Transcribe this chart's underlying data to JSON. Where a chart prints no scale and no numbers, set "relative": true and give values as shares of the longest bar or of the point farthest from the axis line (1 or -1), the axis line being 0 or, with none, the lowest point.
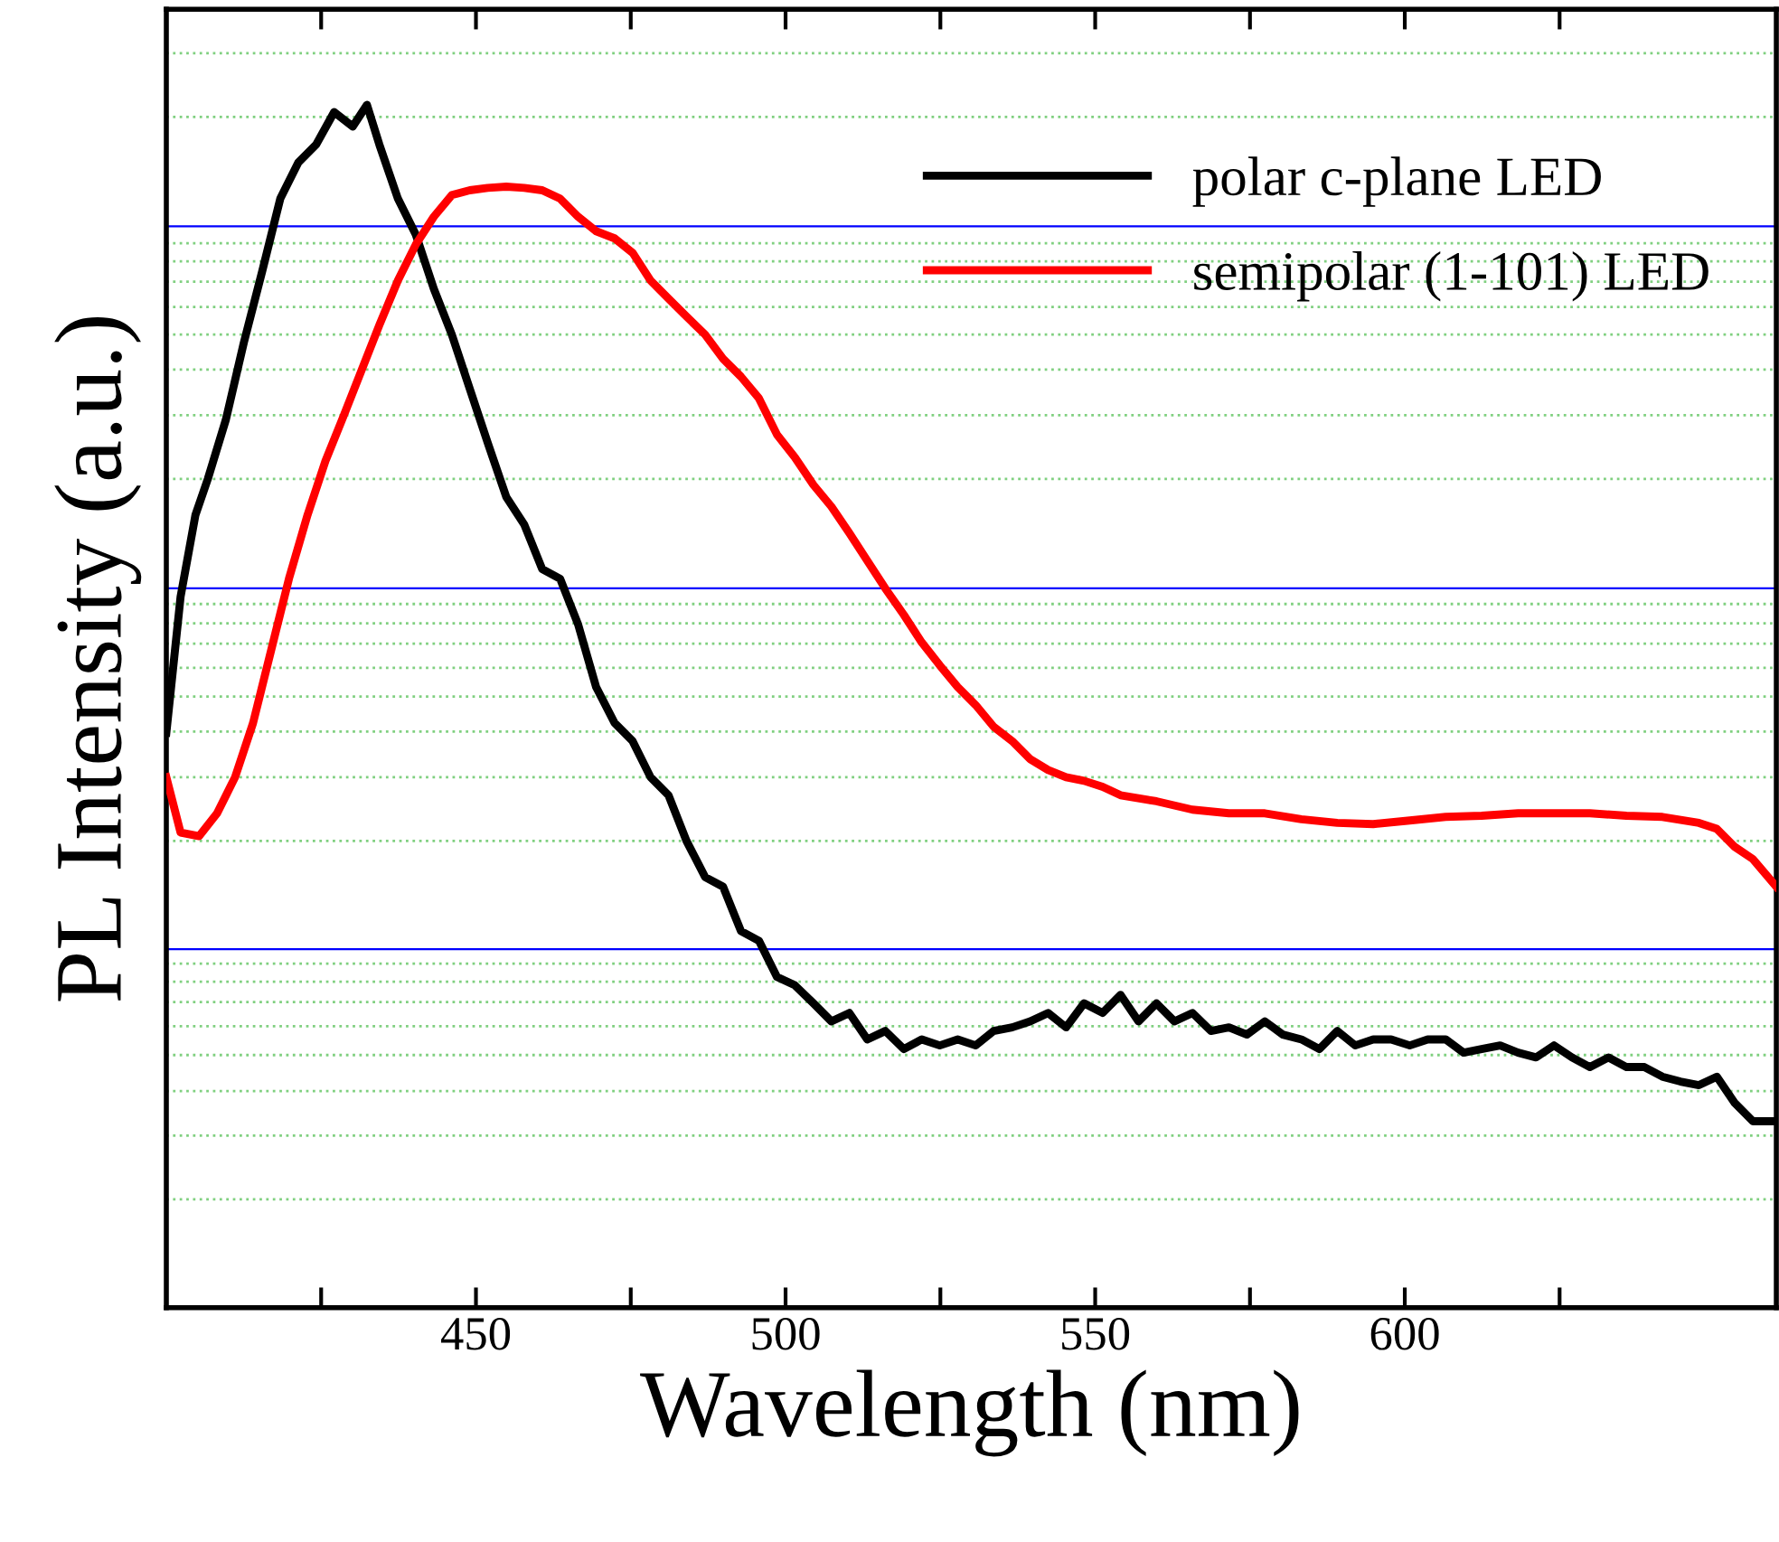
{
  "chart_data": {
    "type": "line",
    "relative": true,
    "xlabel": "Wavelength (nm)",
    "ylabel": "PL Intensity (a.u.)",
    "xlim": [
      400,
      660
    ],
    "xticks": [
      {
        "value": 425,
        "label": null
      },
      450,
      {
        "value": 475,
        "label": null
      },
      500,
      {
        "value": 525,
        "label": null
      },
      550,
      {
        "value": 575,
        "label": null
      },
      600,
      {
        "value": 625,
        "label": null
      }
    ],
    "tick_labels": "x",
    "legend": "top right",
    "grid": false,
    "line_style": "solid",
    "marker": "none",
    "series": [
      {
        "name": "polar c-plane LED",
        "color": "#000000",
        "x": [
          400.0,
          402.3,
          404.7,
          406.7,
          409.6,
          412.5,
          415.5,
          418.4,
          421.3,
          424.2,
          427.1,
          430.1,
          432.4,
          434.4,
          437.4,
          440.3,
          443.2,
          446.1,
          449.0,
          451.9,
          454.9,
          457.8,
          460.7,
          463.6,
          466.5,
          469.4,
          472.4,
          475.3,
          478.2,
          481.1,
          484.0,
          487.0,
          489.9,
          492.8,
          495.7,
          498.6,
          501.5,
          504.5,
          507.4,
          510.3,
          513.2,
          516.1,
          519.1,
          522.0,
          524.9,
          527.8,
          530.7,
          533.6,
          536.6,
          539.5,
          542.4,
          545.3,
          548.2,
          551.2,
          554.1,
          557.0,
          559.9,
          562.8,
          565.7,
          568.7,
          571.6,
          574.5,
          577.4,
          580.3,
          583.3,
          586.2,
          589.1,
          592.0,
          594.9,
          597.8,
          600.8,
          603.7,
          606.6,
          609.5,
          612.4,
          615.4,
          618.3,
          621.2,
          624.1,
          627.0,
          629.9,
          632.9,
          635.8,
          638.7,
          641.6,
          644.5,
          647.5,
          650.4,
          653.3,
          656.2,
          660.0
        ],
        "values": [
          0.478,
          0.591,
          0.659,
          0.689,
          0.738,
          0.802,
          0.862,
          0.922,
          0.952,
          0.967,
          0.994,
          0.982,
          1.0,
          0.967,
          0.922,
          0.892,
          0.847,
          0.809,
          0.764,
          0.719,
          0.674,
          0.651,
          0.614,
          0.606,
          0.568,
          0.516,
          0.486,
          0.471,
          0.441,
          0.426,
          0.388,
          0.358,
          0.35,
          0.313,
          0.305,
          0.275,
          0.268,
          0.253,
          0.238,
          0.245,
          0.223,
          0.23,
          0.215,
          0.223,
          0.218,
          0.223,
          0.218,
          0.23,
          0.233,
          0.238,
          0.245,
          0.233,
          0.253,
          0.245,
          0.26,
          0.238,
          0.253,
          0.238,
          0.245,
          0.23,
          0.233,
          0.227,
          0.238,
          0.227,
          0.223,
          0.215,
          0.23,
          0.218,
          0.223,
          0.223,
          0.218,
          0.223,
          0.223,
          0.212,
          0.215,
          0.218,
          0.212,
          0.208,
          0.218,
          0.208,
          0.2,
          0.208,
          0.2,
          0.2,
          0.192,
          0.188,
          0.185,
          0.192,
          0.17,
          0.155,
          0.155
        ]
      },
      {
        "name": "semipolar (1-101) LED",
        "color": "#ff0000",
        "x": [
          400.0,
          402.3,
          405.3,
          408.2,
          411.1,
          414.0,
          416.9,
          419.8,
          422.8,
          425.7,
          428.6,
          431.5,
          434.4,
          437.4,
          440.3,
          443.2,
          446.1,
          449.0,
          451.9,
          454.9,
          457.8,
          460.7,
          463.6,
          466.5,
          469.4,
          472.4,
          475.3,
          478.2,
          481.1,
          484.0,
          487.0,
          489.9,
          492.8,
          495.7,
          498.6,
          501.5,
          504.5,
          507.4,
          510.3,
          513.2,
          516.1,
          519.1,
          522.0,
          524.9,
          527.8,
          530.7,
          533.6,
          536.6,
          539.5,
          542.4,
          545.3,
          548.2,
          551.2,
          554.1,
          559.9,
          565.7,
          571.6,
          577.4,
          583.3,
          589.1,
          594.9,
          600.8,
          606.6,
          612.4,
          618.3,
          624.1,
          629.9,
          635.8,
          641.6,
          647.5,
          650.4,
          653.3,
          656.2,
          660.0
        ],
        "values": [
          0.441,
          0.395,
          0.392,
          0.411,
          0.441,
          0.486,
          0.546,
          0.606,
          0.659,
          0.704,
          0.741,
          0.779,
          0.817,
          0.854,
          0.884,
          0.907,
          0.925,
          0.929,
          0.931,
          0.932,
          0.931,
          0.929,
          0.922,
          0.907,
          0.895,
          0.889,
          0.877,
          0.854,
          0.839,
          0.824,
          0.809,
          0.789,
          0.774,
          0.756,
          0.726,
          0.707,
          0.684,
          0.666,
          0.644,
          0.621,
          0.598,
          0.576,
          0.553,
          0.534,
          0.516,
          0.501,
          0.483,
          0.471,
          0.456,
          0.447,
          0.441,
          0.438,
          0.433,
          0.426,
          0.421,
          0.414,
          0.411,
          0.411,
          0.406,
          0.403,
          0.402,
          0.405,
          0.408,
          0.409,
          0.411,
          0.411,
          0.411,
          0.409,
          0.408,
          0.403,
          0.398,
          0.383,
          0.373,
          0.35
        ]
      }
    ],
    "ref_lines": [
      {
        "axis": "y",
        "value": 0.09,
        "color": "#80d080",
        "line_style": "dotted"
      },
      {
        "axis": "y",
        "value": 0.143,
        "color": "#80d080",
        "line_style": "dotted"
      },
      {
        "axis": "y",
        "value": 0.18,
        "color": "#80d080",
        "line_style": "dotted"
      },
      {
        "axis": "y",
        "value": 0.21,
        "color": "#80d080",
        "line_style": "dotted"
      },
      {
        "axis": "y",
        "value": 0.234,
        "color": "#80d080",
        "line_style": "dotted"
      },
      {
        "axis": "y",
        "value": 0.254,
        "color": "#80d080",
        "line_style": "dotted"
      },
      {
        "axis": "y",
        "value": 0.271,
        "color": "#80d080",
        "line_style": "dotted"
      },
      {
        "axis": "y",
        "value": 0.286,
        "color": "#80d080",
        "line_style": "dotted"
      },
      {
        "axis": "y",
        "value": 0.298,
        "color": "#0000ff",
        "line_style": "solid"
      },
      {
        "axis": "y",
        "value": 0.388,
        "color": "#80d080",
        "line_style": "dotted"
      },
      {
        "axis": "y",
        "value": 0.441,
        "color": "#80d080",
        "line_style": "dotted"
      },
      {
        "axis": "y",
        "value": 0.479,
        "color": "#80d080",
        "line_style": "dotted"
      },
      {
        "axis": "y",
        "value": 0.508,
        "color": "#80d080",
        "line_style": "dotted"
      },
      {
        "axis": "y",
        "value": 0.532,
        "color": "#80d080",
        "line_style": "dotted"
      },
      {
        "axis": "y",
        "value": 0.552,
        "color": "#80d080",
        "line_style": "dotted"
      },
      {
        "axis": "y",
        "value": 0.569,
        "color": "#80d080",
        "line_style": "dotted"
      },
      {
        "axis": "y",
        "value": 0.585,
        "color": "#80d080",
        "line_style": "dotted"
      },
      {
        "axis": "y",
        "value": 0.598,
        "color": "#0000ff",
        "line_style": "solid"
      },
      {
        "axis": "y",
        "value": 0.689,
        "color": "#80d080",
        "line_style": "dotted"
      },
      {
        "axis": "y",
        "value": 0.742,
        "color": "#80d080",
        "line_style": "dotted"
      },
      {
        "axis": "y",
        "value": 0.78,
        "color": "#80d080",
        "line_style": "dotted"
      },
      {
        "axis": "y",
        "value": 0.809,
        "color": "#80d080",
        "line_style": "dotted"
      },
      {
        "axis": "y",
        "value": 0.832,
        "color": "#80d080",
        "line_style": "dotted"
      },
      {
        "axis": "y",
        "value": 0.853,
        "color": "#80d080",
        "line_style": "dotted"
      },
      {
        "axis": "y",
        "value": 0.87,
        "color": "#80d080",
        "line_style": "dotted"
      },
      {
        "axis": "y",
        "value": 0.885,
        "color": "#80d080",
        "line_style": "dotted"
      },
      {
        "axis": "y",
        "value": 0.899,
        "color": "#0000ff",
        "line_style": "solid"
      },
      {
        "axis": "y",
        "value": 0.99,
        "color": "#80d080",
        "line_style": "dotted"
      },
      {
        "axis": "y",
        "value": 1.043,
        "color": "#80d080",
        "line_style": "dotted"
      }
    ]
  }
}
